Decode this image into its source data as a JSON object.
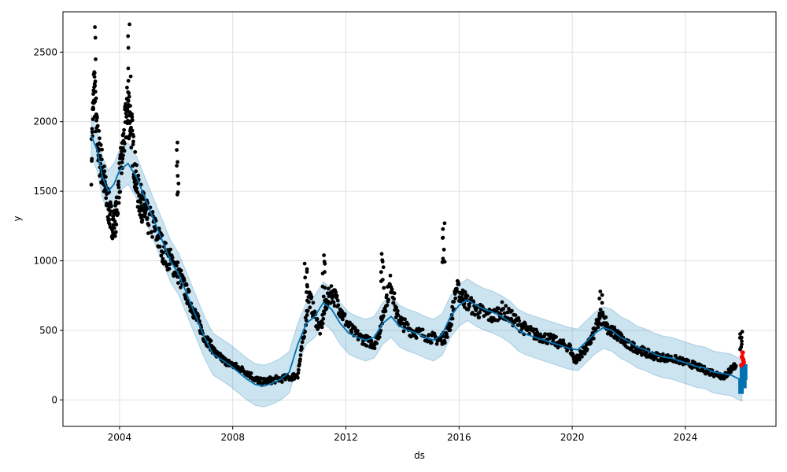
{
  "chart_data": {
    "type": "scatter",
    "title": "",
    "xlabel": "ds",
    "ylabel": "y",
    "xlim": [
      2002.0,
      2027.2
    ],
    "ylim": [
      -190,
      2790
    ],
    "x_ticks": [
      2004,
      2008,
      2012,
      2016,
      2020,
      2024
    ],
    "x_tick_labels": [
      "2004",
      "2008",
      "2012",
      "2016",
      "2020",
      "2024"
    ],
    "y_ticks": [
      0,
      500,
      1000,
      1500,
      2000,
      2500
    ],
    "y_tick_labels": [
      "0",
      "500",
      "1000",
      "1500",
      "2000",
      "2500"
    ],
    "grid": true,
    "colors": {
      "observed": "#000000",
      "forecast": "#0072B2",
      "uncertainty": "#0072B2",
      "highlight": "#FF0000",
      "grid": "#d9d9d9"
    },
    "observed": {
      "x": [
        2003.0,
        2003.1,
        2003.2,
        2003.3,
        2003.4,
        2003.5,
        2003.6,
        2003.7,
        2003.8,
        2003.9,
        2004.0,
        2004.1,
        2004.2,
        2004.3,
        2004.4,
        2004.5,
        2004.6,
        2004.7,
        2004.8,
        2004.9,
        2005.0,
        2005.2,
        2005.4,
        2005.6,
        2005.8,
        2006.0,
        2006.2,
        2006.4,
        2006.6,
        2006.8,
        2007.0,
        2007.2,
        2007.4,
        2007.6,
        2007.8,
        2008.0,
        2008.2,
        2008.5,
        2008.8,
        2009.0,
        2009.3,
        2009.6,
        2010.0,
        2010.3,
        2010.5,
        2010.7,
        2010.9,
        2011.1,
        2011.3,
        2011.5,
        2011.7,
        2011.9,
        2012.2,
        2012.5,
        2012.8,
        2013.0,
        2013.2,
        2013.4,
        2013.6,
        2013.8,
        2014.0,
        2014.3,
        2014.6,
        2015.0,
        2015.3,
        2015.5,
        2015.7,
        2015.9,
        2016.1,
        2016.3,
        2016.6,
        2016.9,
        2017.2,
        2017.5,
        2017.8,
        2018.1,
        2018.4,
        2018.7,
        2019.0,
        2019.3,
        2019.6,
        2019.9,
        2020.1,
        2020.3,
        2020.5,
        2020.7,
        2020.9,
        2021.1,
        2021.3,
        2021.5,
        2021.7,
        2021.9,
        2022.2,
        2022.5,
        2022.8,
        2023.1,
        2023.4,
        2023.7,
        2024.0,
        2024.3,
        2024.6,
        2024.9,
        2025.2,
        2025.4,
        2025.6,
        2025.8
      ],
      "y": [
        1700,
        2300,
        1900,
        1750,
        1650,
        1500,
        1400,
        1300,
        1250,
        1350,
        1600,
        1750,
        1950,
        2150,
        2000,
        1750,
        1550,
        1450,
        1400,
        1350,
        1300,
        1250,
        1150,
        1050,
        1000,
        950,
        850,
        750,
        650,
        550,
        450,
        400,
        330,
        300,
        270,
        250,
        230,
        200,
        150,
        130,
        140,
        150,
        160,
        180,
        450,
        750,
        600,
        500,
        700,
        780,
        700,
        600,
        500,
        450,
        420,
        400,
        500,
        700,
        850,
        600,
        550,
        500,
        480,
        450,
        430,
        450,
        550,
        800,
        750,
        700,
        650,
        620,
        600,
        650,
        600,
        550,
        500,
        470,
        450,
        430,
        400,
        380,
        280,
        330,
        370,
        450,
        550,
        600,
        500,
        480,
        450,
        400,
        380,
        350,
        320,
        310,
        300,
        290,
        270,
        250,
        220,
        200,
        180,
        170,
        220,
        260
      ],
      "peaks": [
        {
          "x": 2003.1,
          "y": 2680
        },
        {
          "x": 2004.35,
          "y": 2700
        },
        {
          "x": 2006.05,
          "y": 1850
        },
        {
          "x": 2010.6,
          "y": 980
        },
        {
          "x": 2011.2,
          "y": 1040
        },
        {
          "x": 2013.3,
          "y": 1050
        },
        {
          "x": 2015.45,
          "y": 1270
        },
        {
          "x": 2021.0,
          "y": 780
        },
        {
          "x": 2025.95,
          "y": 490
        }
      ]
    },
    "forecast": {
      "x": [
        2003.0,
        2003.2,
        2003.4,
        2003.6,
        2003.8,
        2004.0,
        2004.3,
        2004.6,
        2004.9,
        2005.2,
        2005.5,
        2005.8,
        2006.1,
        2006.4,
        2006.7,
        2007.0,
        2007.3,
        2007.6,
        2007.9,
        2008.2,
        2008.5,
        2008.8,
        2009.1,
        2009.4,
        2009.7,
        2010.0,
        2010.3,
        2010.6,
        2010.9,
        2011.2,
        2011.5,
        2011.8,
        2012.1,
        2012.4,
        2012.7,
        2013.0,
        2013.3,
        2013.6,
        2013.9,
        2014.2,
        2014.5,
        2014.8,
        2015.1,
        2015.4,
        2015.7,
        2016.0,
        2016.3,
        2016.6,
        2016.9,
        2017.2,
        2017.5,
        2017.8,
        2018.1,
        2018.4,
        2018.7,
        2019.0,
        2019.3,
        2019.6,
        2019.9,
        2020.2,
        2020.5,
        2020.8,
        2021.1,
        2021.4,
        2021.7,
        2022.0,
        2022.3,
        2022.6,
        2022.9,
        2023.2,
        2023.5,
        2023.8,
        2024.1,
        2024.4,
        2024.7,
        2025.0,
        2025.3,
        2025.6,
        2025.9,
        2026.0
      ],
      "yhat": [
        1900,
        1800,
        1600,
        1500,
        1550,
        1650,
        1700,
        1600,
        1450,
        1300,
        1150,
        1000,
        900,
        750,
        600,
        450,
        330,
        290,
        250,
        200,
        150,
        110,
        100,
        120,
        150,
        200,
        400,
        550,
        600,
        700,
        650,
        550,
        480,
        450,
        430,
        450,
        550,
        600,
        530,
        500,
        480,
        450,
        430,
        470,
        600,
        680,
        720,
        680,
        650,
        630,
        600,
        560,
        500,
        470,
        450,
        430,
        410,
        390,
        370,
        360,
        420,
        480,
        520,
        500,
        450,
        420,
        380,
        360,
        330,
        310,
        300,
        280,
        260,
        240,
        230,
        200,
        190,
        180,
        150,
        140
      ],
      "lower": [
        1750,
        1650,
        1450,
        1350,
        1400,
        1500,
        1550,
        1450,
        1300,
        1150,
        1000,
        850,
        750,
        600,
        450,
        300,
        180,
        140,
        100,
        50,
        0,
        -40,
        -50,
        -30,
        0,
        50,
        250,
        400,
        450,
        550,
        500,
        400,
        330,
        300,
        280,
        300,
        400,
        450,
        380,
        350,
        330,
        300,
        280,
        320,
        450,
        530,
        570,
        530,
        500,
        480,
        450,
        410,
        350,
        320,
        300,
        280,
        260,
        240,
        220,
        210,
        270,
        330,
        370,
        350,
        300,
        270,
        230,
        210,
        180,
        160,
        150,
        130,
        110,
        90,
        80,
        50,
        40,
        30,
        0,
        -10
      ],
      "upper": [
        2050,
        1950,
        1750,
        1650,
        1700,
        1800,
        1850,
        1750,
        1600,
        1450,
        1300,
        1150,
        1050,
        900,
        750,
        600,
        480,
        440,
        400,
        350,
        300,
        260,
        250,
        270,
        300,
        350,
        550,
        700,
        750,
        850,
        800,
        700,
        630,
        600,
        580,
        600,
        700,
        750,
        680,
        650,
        630,
        600,
        580,
        620,
        750,
        830,
        870,
        830,
        800,
        780,
        750,
        710,
        650,
        620,
        600,
        580,
        560,
        540,
        520,
        510,
        570,
        630,
        670,
        650,
        600,
        570,
        530,
        510,
        480,
        460,
        450,
        430,
        410,
        390,
        380,
        350,
        340,
        330,
        300,
        290
      ]
    },
    "highlight_points": {
      "x": [
        2025.98,
        2026.0,
        2026.02,
        2026.04,
        2026.06
      ],
      "y": [
        250,
        310,
        340,
        290,
        270
      ]
    },
    "forecast_tail": {
      "x": [
        2025.95,
        2026.0,
        2026.05,
        2026.08
      ],
      "y": [
        100,
        180,
        140,
        200
      ]
    }
  }
}
